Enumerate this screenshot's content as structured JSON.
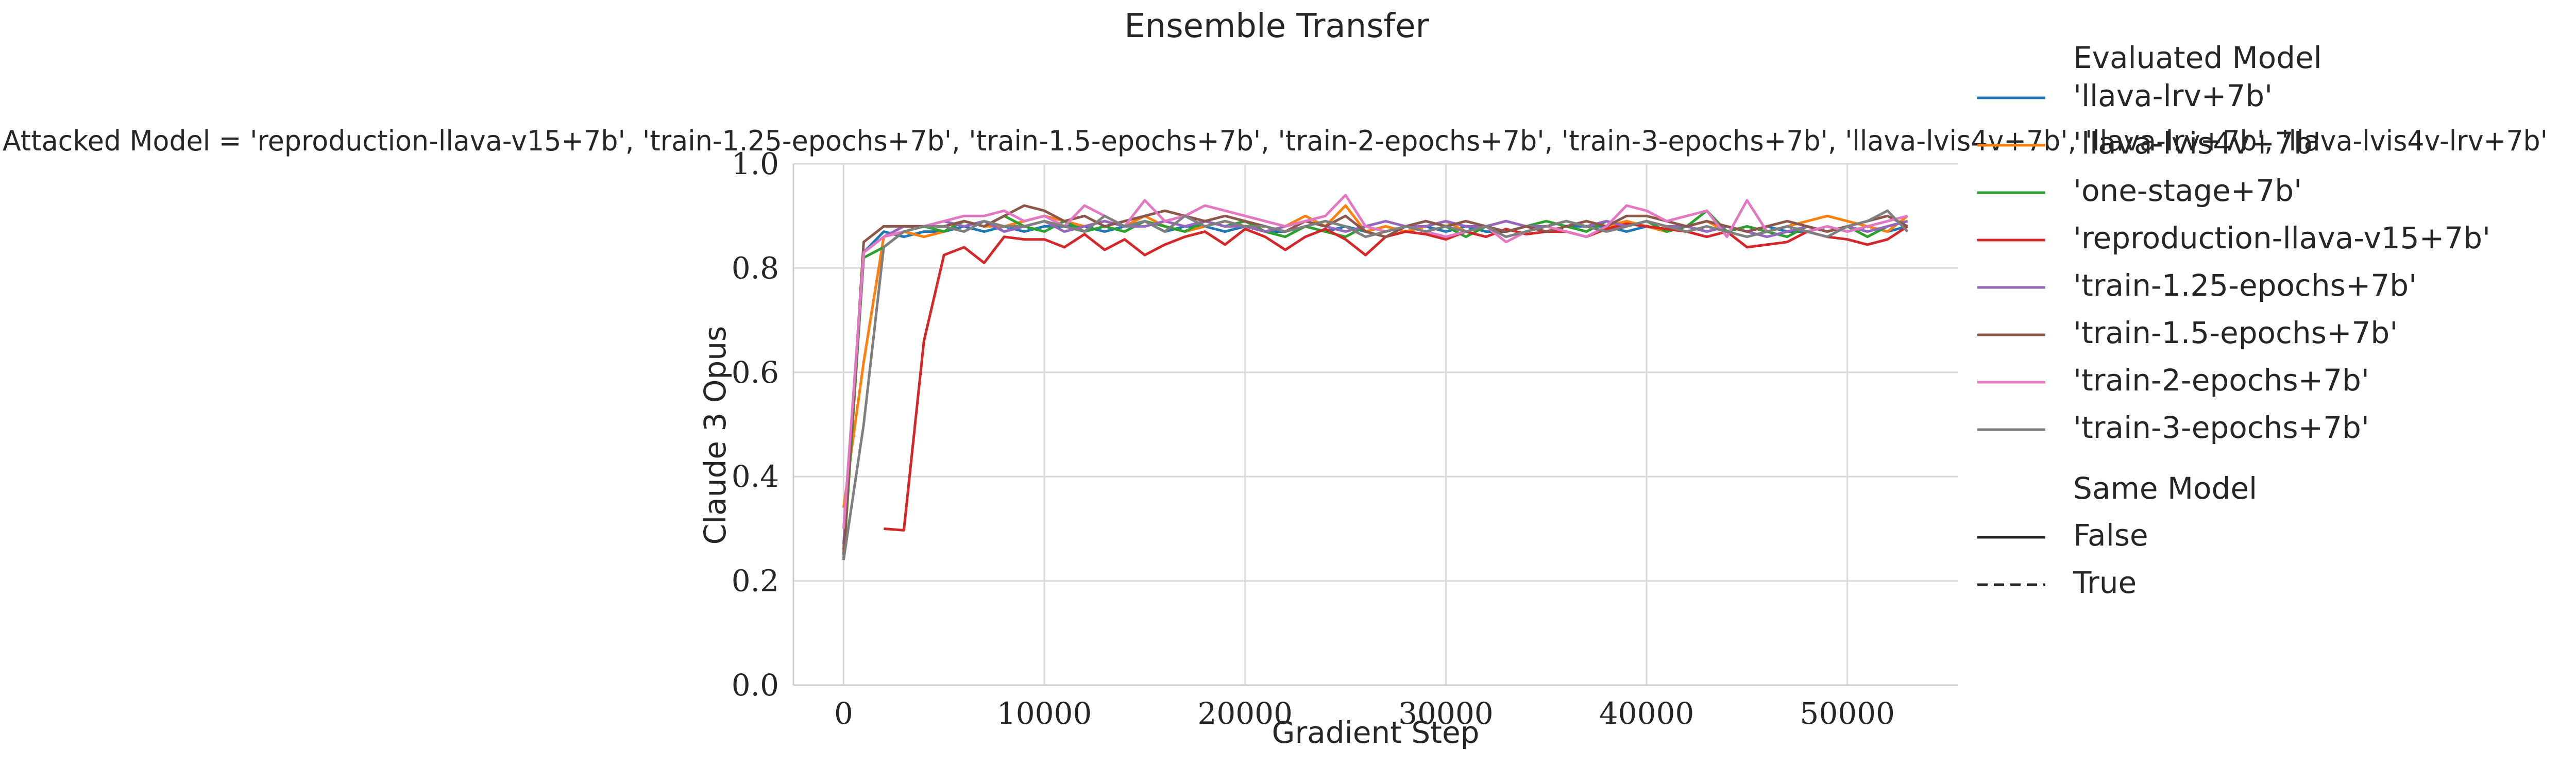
{
  "chart_data": {
    "type": "line",
    "title": "Ensemble Transfer",
    "subtitle": "Attacked Model = 'reproduction-llava-v15+7b', 'train-1.25-epochs+7b', 'train-1.5-epochs+7b', 'train-2-epochs+7b', 'train-3-epochs+7b', 'llava-lvis4v+7b', 'llava-lrv+7b', 'llava-lvis4v-lrv+7b'",
    "xlabel": "Gradient Step",
    "ylabel": "Claude 3 Opus",
    "xlim": [
      -2500,
      55500
    ],
    "ylim": [
      0.0,
      1.0
    ],
    "xticks": [
      0,
      10000,
      20000,
      30000,
      40000,
      50000
    ],
    "yticks": [
      0.0,
      0.2,
      0.4,
      0.6,
      0.8,
      1.0
    ],
    "grid": true,
    "legend": {
      "placement": "right-outside",
      "hue_title": "Evaluated Model",
      "style_title": "Same Model",
      "style_entries": [
        {
          "label": "False",
          "dash": "solid"
        },
        {
          "label": "True",
          "dash": "dashed"
        }
      ]
    },
    "series": [
      {
        "name": "'llava-lrv+7b'",
        "color": "#1f77b4",
        "x": [
          0,
          1000,
          2000,
          3000,
          4000,
          5000,
          6000,
          7000,
          8000,
          9000,
          10000,
          11000,
          12000,
          13000,
          14000,
          15000,
          16000,
          17000,
          18000,
          19000,
          20000,
          21000,
          22000,
          23000,
          24000,
          25000,
          26000,
          27000,
          28000,
          29000,
          30000,
          31000,
          32000,
          33000,
          34000,
          35000,
          36000,
          37000,
          38000,
          39000,
          40000,
          41000,
          42000,
          43000,
          44000,
          45000,
          46000,
          47000,
          48000,
          49000,
          50000,
          51000,
          52000,
          53000
        ],
        "y": [
          0.26,
          0.83,
          0.87,
          0.86,
          0.87,
          0.87,
          0.88,
          0.87,
          0.88,
          0.87,
          0.88,
          0.88,
          0.88,
          0.87,
          0.88,
          0.89,
          0.87,
          0.88,
          0.88,
          0.87,
          0.88,
          0.87,
          0.87,
          0.88,
          0.87,
          0.88,
          0.87,
          0.88,
          0.87,
          0.88,
          0.87,
          0.88,
          0.87,
          0.87,
          0.88,
          0.87,
          0.88,
          0.88,
          0.88,
          0.87,
          0.88,
          0.87,
          0.88,
          0.87,
          0.88,
          0.87,
          0.88,
          0.87,
          0.87,
          0.88,
          0.87,
          0.88,
          0.87,
          0.88
        ]
      },
      {
        "name": "'llava-lvis4v+7b'",
        "color": "#ff7f0e",
        "x": [
          0,
          1000,
          2000,
          3000,
          4000,
          5000,
          6000,
          7000,
          8000,
          9000,
          10000,
          11000,
          12000,
          13000,
          14000,
          15000,
          16000,
          17000,
          18000,
          19000,
          20000,
          21000,
          22000,
          23000,
          24000,
          25000,
          26000,
          27000,
          28000,
          29000,
          30000,
          31000,
          32000,
          33000,
          34000,
          35000,
          36000,
          37000,
          38000,
          39000,
          40000,
          41000,
          42000,
          43000,
          44000,
          45000,
          46000,
          47000,
          48000,
          49000,
          50000,
          51000,
          52000,
          53000
        ],
        "y": [
          0.34,
          0.62,
          0.86,
          0.87,
          0.86,
          0.87,
          0.89,
          0.88,
          0.88,
          0.89,
          0.9,
          0.89,
          0.88,
          0.89,
          0.88,
          0.9,
          0.88,
          0.87,
          0.88,
          0.89,
          0.88,
          0.87,
          0.88,
          0.9,
          0.88,
          0.92,
          0.87,
          0.88,
          0.87,
          0.88,
          0.89,
          0.87,
          0.88,
          0.89,
          0.88,
          0.87,
          0.88,
          0.89,
          0.88,
          0.89,
          0.88,
          0.87,
          0.88,
          0.89,
          0.87,
          0.88,
          0.87,
          0.88,
          0.89,
          0.9,
          0.89,
          0.88,
          0.87,
          0.9
        ]
      },
      {
        "name": "'one-stage+7b'",
        "color": "#2ca02c",
        "x": [
          0,
          1000,
          2000,
          3000,
          4000,
          5000,
          6000,
          7000,
          8000,
          9000,
          10000,
          11000,
          12000,
          13000,
          14000,
          15000,
          16000,
          17000,
          18000,
          19000,
          20000,
          21000,
          22000,
          23000,
          24000,
          25000,
          26000,
          27000,
          28000,
          29000,
          30000,
          31000,
          32000,
          33000,
          34000,
          35000,
          36000,
          37000,
          38000,
          39000,
          40000,
          41000,
          42000,
          43000,
          44000,
          45000,
          46000,
          47000,
          48000,
          49000,
          50000,
          51000,
          52000,
          53000
        ],
        "y": [
          0.24,
          0.82,
          0.84,
          0.87,
          0.88,
          0.87,
          0.89,
          0.88,
          0.9,
          0.88,
          0.87,
          0.89,
          0.87,
          0.88,
          0.87,
          0.89,
          0.88,
          0.87,
          0.89,
          0.88,
          0.89,
          0.87,
          0.86,
          0.88,
          0.87,
          0.86,
          0.88,
          0.87,
          0.88,
          0.89,
          0.88,
          0.86,
          0.88,
          0.87,
          0.88,
          0.89,
          0.88,
          0.87,
          0.89,
          0.88,
          0.89,
          0.87,
          0.88,
          0.91,
          0.87,
          0.88,
          0.87,
          0.86,
          0.88,
          0.87,
          0.88,
          0.86,
          0.88,
          0.89
        ]
      },
      {
        "name": "'reproduction-llava-v15+7b'",
        "color": "#d62728",
        "x": [
          2000,
          3000,
          4000,
          5000,
          6000,
          7000,
          8000,
          9000,
          10000,
          11000,
          12000,
          13000,
          14000,
          15000,
          16000,
          17000,
          18000,
          19000,
          20000,
          21000,
          22000,
          23000,
          24000,
          25000,
          26000,
          27000,
          28000,
          29000,
          30000,
          31000,
          32000,
          33000,
          34000,
          35000,
          36000,
          37000,
          38000,
          39000,
          40000,
          41000,
          42000,
          43000,
          44000,
          45000,
          46000,
          47000,
          48000,
          49000,
          50000,
          51000,
          52000,
          53000
        ],
        "y": [
          0.3,
          0.297,
          0.66,
          0.825,
          0.84,
          0.81,
          0.86,
          0.855,
          0.855,
          0.84,
          0.865,
          0.835,
          0.855,
          0.825,
          0.845,
          0.86,
          0.87,
          0.845,
          0.875,
          0.86,
          0.835,
          0.86,
          0.875,
          0.855,
          0.825,
          0.86,
          0.87,
          0.865,
          0.855,
          0.87,
          0.86,
          0.875,
          0.865,
          0.87,
          0.87,
          0.86,
          0.875,
          0.885,
          0.88,
          0.875,
          0.87,
          0.86,
          0.87,
          0.84,
          0.845,
          0.85,
          0.87,
          0.86,
          0.855,
          0.845,
          0.855,
          0.88
        ]
      },
      {
        "name": "'train-1.25-epochs+7b'",
        "color": "#9467bd",
        "x": [
          0,
          1000,
          2000,
          3000,
          4000,
          5000,
          6000,
          7000,
          8000,
          9000,
          10000,
          11000,
          12000,
          13000,
          14000,
          15000,
          16000,
          17000,
          18000,
          19000,
          20000,
          21000,
          22000,
          23000,
          24000,
          25000,
          26000,
          27000,
          28000,
          29000,
          30000,
          31000,
          32000,
          33000,
          34000,
          35000,
          36000,
          37000,
          38000,
          39000,
          40000,
          41000,
          42000,
          43000,
          44000,
          45000,
          46000,
          47000,
          48000,
          49000,
          50000,
          51000,
          52000,
          53000
        ],
        "y": [
          0.27,
          0.83,
          0.86,
          0.88,
          0.88,
          0.89,
          0.88,
          0.89,
          0.87,
          0.88,
          0.89,
          0.87,
          0.88,
          0.89,
          0.88,
          0.88,
          0.89,
          0.88,
          0.89,
          0.88,
          0.88,
          0.87,
          0.88,
          0.89,
          0.88,
          0.87,
          0.88,
          0.89,
          0.88,
          0.88,
          0.89,
          0.88,
          0.88,
          0.89,
          0.88,
          0.88,
          0.89,
          0.88,
          0.89,
          0.88,
          0.89,
          0.88,
          0.88,
          0.87,
          0.88,
          0.87,
          0.86,
          0.87,
          0.88,
          0.87,
          0.88,
          0.87,
          0.88,
          0.89
        ]
      },
      {
        "name": "'train-1.5-epochs+7b'",
        "color": "#8c564b",
        "x": [
          0,
          1000,
          2000,
          3000,
          4000,
          5000,
          6000,
          7000,
          8000,
          9000,
          10000,
          11000,
          12000,
          13000,
          14000,
          15000,
          16000,
          17000,
          18000,
          19000,
          20000,
          21000,
          22000,
          23000,
          24000,
          25000,
          26000,
          27000,
          28000,
          29000,
          30000,
          31000,
          32000,
          33000,
          34000,
          35000,
          36000,
          37000,
          38000,
          39000,
          40000,
          41000,
          42000,
          43000,
          44000,
          45000,
          46000,
          47000,
          48000,
          49000,
          50000,
          51000,
          52000,
          53000
        ],
        "y": [
          0.25,
          0.85,
          0.88,
          0.88,
          0.88,
          0.88,
          0.89,
          0.88,
          0.9,
          0.92,
          0.91,
          0.89,
          0.9,
          0.88,
          0.89,
          0.9,
          0.91,
          0.9,
          0.89,
          0.9,
          0.89,
          0.88,
          0.87,
          0.89,
          0.88,
          0.9,
          0.87,
          0.86,
          0.88,
          0.89,
          0.88,
          0.89,
          0.88,
          0.87,
          0.88,
          0.87,
          0.88,
          0.89,
          0.88,
          0.9,
          0.9,
          0.89,
          0.88,
          0.89,
          0.88,
          0.87,
          0.88,
          0.89,
          0.88,
          0.87,
          0.88,
          0.89,
          0.9,
          0.88
        ]
      },
      {
        "name": "'train-2-epochs+7b'",
        "color": "#e377c2",
        "x": [
          0,
          1000,
          2000,
          3000,
          4000,
          5000,
          6000,
          7000,
          8000,
          9000,
          10000,
          11000,
          12000,
          13000,
          14000,
          15000,
          16000,
          17000,
          18000,
          19000,
          20000,
          21000,
          22000,
          23000,
          24000,
          25000,
          26000,
          27000,
          28000,
          29000,
          30000,
          31000,
          32000,
          33000,
          34000,
          35000,
          36000,
          37000,
          38000,
          39000,
          40000,
          41000,
          42000,
          43000,
          44000,
          45000,
          46000,
          47000,
          48000,
          49000,
          50000,
          51000,
          52000,
          53000
        ],
        "y": [
          0.3,
          0.83,
          0.86,
          0.87,
          0.88,
          0.89,
          0.9,
          0.9,
          0.91,
          0.89,
          0.9,
          0.88,
          0.92,
          0.9,
          0.88,
          0.93,
          0.89,
          0.9,
          0.92,
          0.91,
          0.9,
          0.89,
          0.88,
          0.89,
          0.9,
          0.94,
          0.88,
          0.87,
          0.88,
          0.87,
          0.86,
          0.87,
          0.88,
          0.85,
          0.87,
          0.88,
          0.87,
          0.86,
          0.88,
          0.92,
          0.91,
          0.89,
          0.9,
          0.91,
          0.86,
          0.93,
          0.87,
          0.88,
          0.87,
          0.88,
          0.87,
          0.88,
          0.89,
          0.9
        ]
      },
      {
        "name": "'train-3-epochs+7b'",
        "color": "#7f7f7f",
        "x": [
          0,
          1000,
          2000,
          3000,
          4000,
          5000,
          6000,
          7000,
          8000,
          9000,
          10000,
          11000,
          12000,
          13000,
          14000,
          15000,
          16000,
          17000,
          18000,
          19000,
          20000,
          21000,
          22000,
          23000,
          24000,
          25000,
          26000,
          27000,
          28000,
          29000,
          30000,
          31000,
          32000,
          33000,
          34000,
          35000,
          36000,
          37000,
          38000,
          39000,
          40000,
          41000,
          42000,
          43000,
          44000,
          45000,
          46000,
          47000,
          48000,
          49000,
          50000,
          51000,
          52000,
          53000
        ],
        "y": [
          0.24,
          0.5,
          0.84,
          0.87,
          0.88,
          0.88,
          0.87,
          0.89,
          0.88,
          0.88,
          0.89,
          0.88,
          0.87,
          0.9,
          0.88,
          0.89,
          0.87,
          0.9,
          0.88,
          0.89,
          0.88,
          0.88,
          0.87,
          0.88,
          0.89,
          0.88,
          0.86,
          0.87,
          0.88,
          0.87,
          0.88,
          0.87,
          0.88,
          0.86,
          0.87,
          0.88,
          0.89,
          0.88,
          0.87,
          0.88,
          0.89,
          0.88,
          0.87,
          0.88,
          0.87,
          0.86,
          0.87,
          0.88,
          0.87,
          0.86,
          0.88,
          0.89,
          0.91,
          0.87
        ]
      }
    ]
  }
}
